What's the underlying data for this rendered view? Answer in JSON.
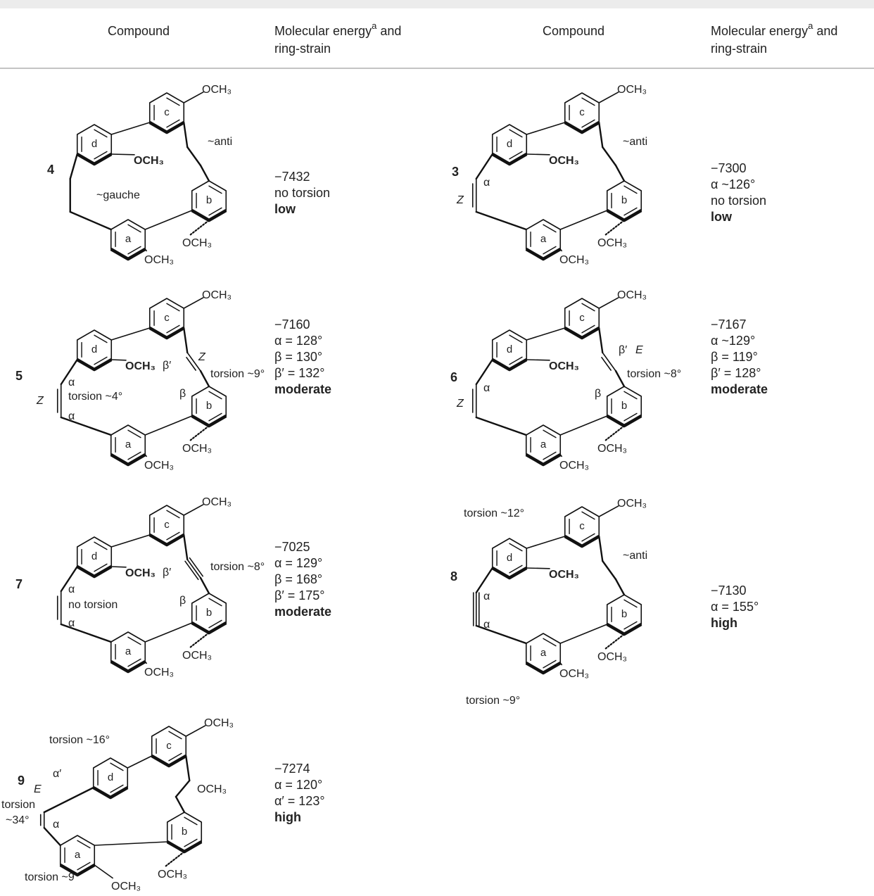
{
  "table": {
    "columns": [
      "Compound",
      {
        "text": "Molecular energy",
        "sup": "a",
        "rest": "and",
        "line2": "ring-strain"
      },
      "Compound",
      {
        "text": "Molecular energy",
        "sup": "a",
        "rest": "and",
        "line2": "ring-strain"
      }
    ],
    "rows": [
      [
        {
          "number": "4",
          "structure": [
            "c",
            "d",
            "b",
            "a",
            "OCH₃",
            "~anti",
            "OCH₃",
            "~gauche",
            "OCH₃",
            "OCH₃"
          ],
          "energy": "−7432",
          "details": [
            "no torsion"
          ],
          "strain": "low"
        },
        {
          "number": "3",
          "structure": [
            "c",
            "d",
            "b",
            "a",
            "OCH₃",
            "~anti",
            "OCH₃",
            "Z",
            "α",
            "OCH₃",
            "OCH₃"
          ],
          "energy": "−7300",
          "details": [
            "α ~126°",
            "no torsion"
          ],
          "strain": "low"
        }
      ],
      [
        {
          "number": "5",
          "structure": [
            "c",
            "d",
            "b",
            "a",
            "OCH₃",
            "β′",
            "Z",
            "torsion ~9°",
            "OCH₃",
            "α",
            "torsion ~4°",
            "Z",
            "α",
            "β",
            "OCH₃",
            "OCH₃"
          ],
          "energy": "−7160",
          "details": [
            "α = 128°",
            "β = 130°",
            "β′ = 132°"
          ],
          "strain": "moderate"
        },
        {
          "number": "6",
          "structure": [
            "c",
            "d",
            "b",
            "a",
            "OCH₃",
            "β′",
            "E",
            "torsion ~8°",
            "OCH₃",
            "α",
            "Z",
            "β",
            "OCH₃",
            "OCH₃"
          ],
          "energy": "−7167",
          "details": [
            "α ~129°",
            "β = 119°",
            "β′ = 128°"
          ],
          "strain": "moderate"
        }
      ],
      [
        {
          "number": "7",
          "structure": [
            "c",
            "d",
            "b",
            "a",
            "OCH₃",
            "β′",
            "torsion ~8°",
            "OCH₃",
            "α",
            "no torsion",
            "α",
            "β",
            "OCH₃",
            "OCH₃"
          ],
          "energy": "−7025",
          "details": [
            "α = 129°",
            "β = 168°",
            "β′ = 175°"
          ],
          "strain": "moderate"
        },
        {
          "number": "8",
          "structure": [
            "c",
            "d",
            "b",
            "a",
            "OCH₃",
            "torsion ~12°",
            "OCH₃",
            "~anti",
            "α",
            "α",
            "OCH₃",
            "OCH₃",
            "torsion ~9°"
          ],
          "energy": "−7130",
          "details": [
            "α = 155°"
          ],
          "strain": "high"
        }
      ],
      [
        {
          "number": "9",
          "structure": [
            "c",
            "d",
            "b",
            "a",
            "OCH₃",
            "torsion ~16°",
            "α′",
            "E",
            "torsion",
            "~34°",
            "α",
            "OCH₃",
            "OCH₃",
            "torsion ~9°",
            "OCH₃"
          ],
          "energy": "−7274",
          "details": [
            "α = 120°",
            "α′ = 123°"
          ],
          "strain": "high"
        }
      ]
    ]
  }
}
